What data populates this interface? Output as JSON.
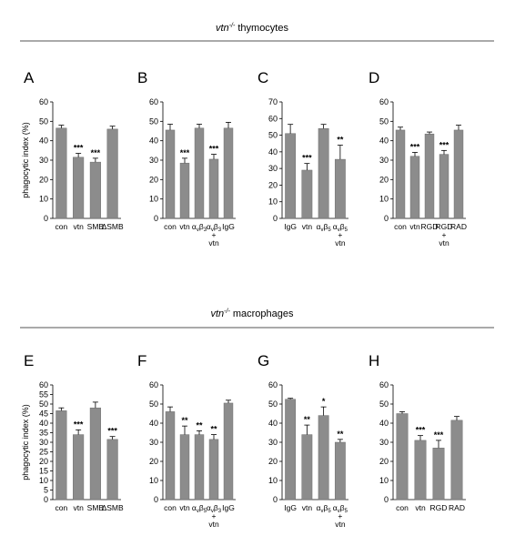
{
  "colors": {
    "bar": "#8c8c8c",
    "bar_stroke": "#6e6e6e",
    "axis": "#000000",
    "rule": "#555555"
  },
  "sections": [
    {
      "title_italic": "vtn",
      "title_sup": "-/-",
      "title_rest": " thymocytes"
    },
    {
      "title_italic": "vtn",
      "title_sup": "-/-",
      "title_rest": " macrophages"
    }
  ],
  "chart_data": [
    {
      "type": "bar",
      "panel": "A",
      "ylabel": "phagocytic index (%)",
      "ylim": [
        0,
        60
      ],
      "yticks": [
        0,
        10,
        20,
        30,
        40,
        50,
        60
      ],
      "categories": [
        "con",
        "vtn",
        "SMB",
        "ΔSMB"
      ],
      "values": [
        46.5,
        31.5,
        29,
        46
      ],
      "errors": [
        1.5,
        2,
        2,
        1.5
      ],
      "signif": [
        "",
        "***",
        "***",
        ""
      ]
    },
    {
      "type": "bar",
      "panel": "B",
      "ylim": [
        0,
        60
      ],
      "yticks": [
        0,
        10,
        20,
        30,
        40,
        50,
        60
      ],
      "categories": [
        "con",
        "vtn",
        "αvβ3",
        "αvβ3 + vtn",
        "IgG"
      ],
      "values": [
        45.5,
        28.5,
        46.5,
        30.5,
        46.5
      ],
      "errors": [
        3,
        2.5,
        2,
        2.5,
        3
      ],
      "signif": [
        "",
        "***",
        "",
        "***",
        ""
      ]
    },
    {
      "type": "bar",
      "panel": "C",
      "ylim": [
        0,
        70
      ],
      "yticks": [
        0,
        10,
        20,
        30,
        40,
        50,
        60,
        70
      ],
      "categories": [
        "IgG",
        "vtn",
        "αvβ5",
        "αvβ5 + vtn"
      ],
      "values": [
        51,
        29,
        54,
        35.5
      ],
      "errors": [
        5.5,
        4,
        2.5,
        8.5
      ],
      "signif": [
        "",
        "***",
        "",
        "**"
      ]
    },
    {
      "type": "bar",
      "panel": "D",
      "ylim": [
        0,
        60
      ],
      "yticks": [
        0,
        10,
        20,
        30,
        40,
        50,
        60
      ],
      "categories": [
        "con",
        "vtn",
        "RGD",
        "RGD + vtn",
        "RAD"
      ],
      "values": [
        45.5,
        32,
        43.5,
        33,
        45.5
      ],
      "errors": [
        1.5,
        2,
        1,
        2,
        2.5
      ],
      "signif": [
        "",
        "***",
        "",
        "***",
        ""
      ]
    },
    {
      "type": "bar",
      "panel": "E",
      "ylabel": "phagocytic index (%)",
      "ylim": [
        0,
        60
      ],
      "yticks": [
        0,
        5,
        10,
        15,
        20,
        25,
        30,
        35,
        40,
        45,
        50,
        55,
        60
      ],
      "categories": [
        "con",
        "vtn",
        "SMB",
        "ΔSMB"
      ],
      "values": [
        46.5,
        34,
        48,
        31.5
      ],
      "errors": [
        1.5,
        2.5,
        3,
        1.5
      ],
      "signif": [
        "",
        "***",
        "",
        "***"
      ]
    },
    {
      "type": "bar",
      "panel": "F",
      "ylim": [
        0,
        60
      ],
      "yticks": [
        0,
        10,
        20,
        30,
        40,
        50,
        60
      ],
      "categories": [
        "con",
        "vtn",
        "αvβ5",
        "αvβ3 + vtn",
        "IgG"
      ],
      "values": [
        46,
        34,
        34,
        31.5,
        50.5
      ],
      "errors": [
        2.5,
        4.5,
        2,
        2.5,
        1.5
      ],
      "signif": [
        "",
        "**",
        "**",
        "**",
        ""
      ]
    },
    {
      "type": "bar",
      "panel": "G",
      "ylim": [
        0,
        60
      ],
      "yticks": [
        0,
        10,
        20,
        30,
        40,
        50,
        60
      ],
      "categories": [
        "IgG",
        "vtn",
        "αvβ5",
        "αvβ5 + vtn"
      ],
      "values": [
        52.5,
        34,
        44,
        30
      ],
      "errors": [
        0.5,
        5,
        4.5,
        1.5
      ],
      "signif": [
        "",
        "**",
        "*",
        "**"
      ]
    },
    {
      "type": "bar",
      "panel": "H",
      "ylim": [
        0,
        60
      ],
      "yticks": [
        0,
        10,
        20,
        30,
        40,
        50,
        60
      ],
      "categories": [
        "con",
        "vtn",
        "RGD",
        "RAD"
      ],
      "values": [
        45,
        31,
        27,
        41.5
      ],
      "errors": [
        1,
        2.5,
        4,
        2
      ],
      "signif": [
        "",
        "***",
        "***",
        ""
      ]
    }
  ]
}
